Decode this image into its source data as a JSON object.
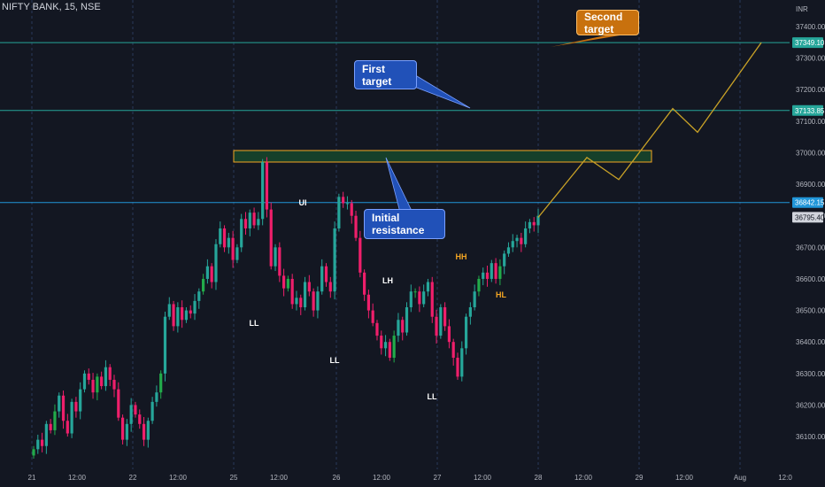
{
  "header": {
    "title": "NIFTY BANK, 15, NSE"
  },
  "axis": {
    "currency": "INR"
  },
  "price_ticks": [
    "37400.00",
    "37300.00",
    "37200.00",
    "37100.00",
    "37000.00",
    "36900.00",
    "36800.00",
    "36700.00",
    "36600.00",
    "36500.00",
    "36400.00",
    "36300.00",
    "36200.00",
    "36100.00"
  ],
  "price_badges": [
    {
      "label": "37349.10",
      "value": 37349.1,
      "color": "#26a69a",
      "text_color": "#ffffff"
    },
    {
      "label": "37133.85",
      "value": 37133.85,
      "color": "#26a69a",
      "text_color": "#ffffff"
    },
    {
      "label": "36842.15",
      "value": 36842.15,
      "color": "#2196d8",
      "text_color": "#ffffff"
    },
    {
      "label": "36795.40",
      "value": 36795.4,
      "color": "#d1d4dc",
      "text_color": "#131722"
    }
  ],
  "time_ticks": [
    "21",
    "12:00",
    "22",
    "12:00",
    "25",
    "12:00",
    "26",
    "12:00",
    "27",
    "12:00",
    "28",
    "12:00",
    "29",
    "12:00",
    "Aug",
    "12:0"
  ],
  "callouts": {
    "second_target": "Second target",
    "first_target": "First target",
    "initial_resistance": "Initial resistance"
  },
  "swing_labels": [
    {
      "text": "LL",
      "color": "#ffffff"
    },
    {
      "text": "UI",
      "color": "#ffffff"
    },
    {
      "text": "LL",
      "color": "#ffffff"
    },
    {
      "text": "LH",
      "color": "#ffffff"
    },
    {
      "text": "LL",
      "color": "#ffffff"
    },
    {
      "text": "HH",
      "color": "#f5a623"
    },
    {
      "text": "HL",
      "color": "#f5a623"
    }
  ],
  "colors": {
    "background": "#131722",
    "up": "#26a69a",
    "up_bright": "#22ab4a",
    "down": "#ef1f6b",
    "level_line": "#26a69a",
    "resistance_line": "#2196d8",
    "projection": "#c9a227",
    "zone_fill": "#16402a",
    "zone_border": "#f5a623"
  },
  "chart_data": {
    "type": "candlestick",
    "title": "NIFTY BANK, 15, NSE",
    "ylabel": "INR",
    "ylim": [
      36040,
      37460
    ],
    "levels": [
      37349.1,
      37133.85,
      36842.15
    ],
    "resistance_zone": [
      36980,
      37010
    ],
    "current_price": 36795.4,
    "projection_path": [
      36795,
      36985,
      36915,
      37140,
      37065,
      37349
    ],
    "ohlc_note": "approximate 15-min candles, Jul 21 - Jul 28",
    "closes": [
      36060,
      36090,
      36070,
      36140,
      36120,
      36180,
      36230,
      36150,
      36110,
      36210,
      36180,
      36250,
      36300,
      36280,
      36240,
      36290,
      36260,
      36320,
      36280,
      36250,
      36160,
      36090,
      36140,
      36200,
      36170,
      36140,
      36090,
      36150,
      36210,
      36240,
      36300,
      36480,
      36520,
      36450,
      36510,
      36470,
      36500,
      36490,
      36530,
      36560,
      36600,
      36640,
      36590,
      36710,
      36760,
      36700,
      36730,
      36660,
      36700,
      36790,
      36760,
      36810,
      36770,
      36790,
      36970,
      36820,
      36640,
      36700,
      36610,
      36570,
      36600,
      36520,
      36540,
      36510,
      36590,
      36560,
      36500,
      36560,
      36640,
      36590,
      36560,
      36760,
      36860,
      36840,
      36840,
      36800,
      36730,
      36620,
      36550,
      36500,
      36460,
      36420,
      36380,
      36400,
      36350,
      36420,
      36470,
      36430,
      36510,
      36560,
      36560,
      36520,
      36560,
      36590,
      36480,
      36420,
      36510,
      36450,
      36400,
      36350,
      36290,
      36380,
      36480,
      36510,
      36560,
      36600,
      36620,
      36600,
      36650,
      36600,
      36640,
      36680,
      36700,
      36720,
      36730,
      36710,
      36760,
      36780,
      36770,
      36800
    ]
  }
}
